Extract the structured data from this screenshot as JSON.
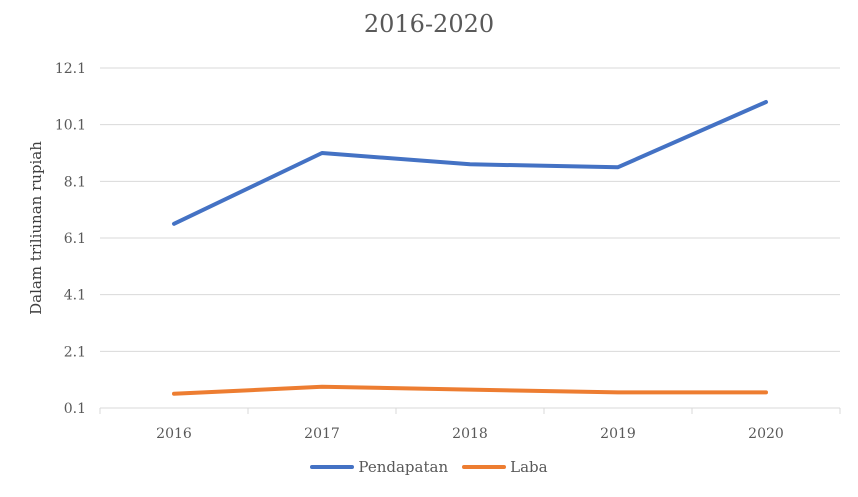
{
  "chart_data": {
    "type": "line",
    "title": "2016-2020",
    "xlabel": "",
    "ylabel": "Dalam triliunan rupiah",
    "categories": [
      "2016",
      "2017",
      "2018",
      "2019",
      "2020"
    ],
    "yticks": [
      "0.1",
      "2.1",
      "4.1",
      "6.1",
      "8.1",
      "10.1",
      "12.1"
    ],
    "ylim": [
      0.1,
      12.1
    ],
    "grid": true,
    "legend_position": "bottom",
    "series": [
      {
        "name": "Pendapatan",
        "color": "#4472C4",
        "values": [
          6.6,
          9.1,
          8.7,
          8.6,
          10.9
        ]
      },
      {
        "name": "Laba",
        "color": "#ED7D31",
        "values": [
          0.6,
          0.85,
          0.75,
          0.65,
          0.65
        ]
      }
    ]
  }
}
